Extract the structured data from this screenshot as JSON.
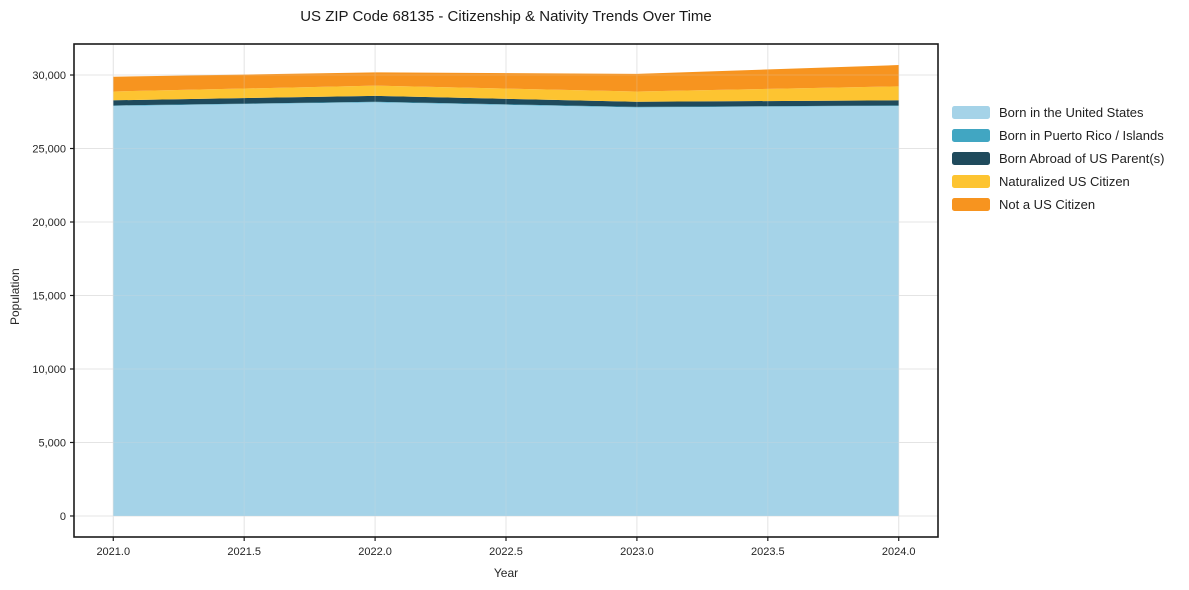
{
  "title": "US ZIP Code 68135 - Citizenship & Nativity Trends Over Time",
  "chart_data": {
    "type": "area",
    "stacked": true,
    "x": [
      2021.0,
      2022.0,
      2023.0,
      2024.0
    ],
    "series": [
      {
        "name": "Born in the United States",
        "color": "#a5d3e8",
        "values": [
          27900,
          28150,
          27800,
          27900
        ]
      },
      {
        "name": "Born in Puerto Rico / Islands",
        "color": "#41a6c2",
        "values": [
          30,
          30,
          30,
          30
        ]
      },
      {
        "name": "Born Abroad of US Parent(s)",
        "color": "#1f4a5c",
        "values": [
          350,
          400,
          350,
          350
        ]
      },
      {
        "name": "Naturalized US Citizen",
        "color": "#fdc431",
        "values": [
          600,
          700,
          700,
          950
        ]
      },
      {
        "name": "Not a US Citizen",
        "color": "#f7941f",
        "values": [
          1000,
          900,
          1200,
          1450
        ]
      }
    ],
    "xlabel": "Year",
    "ylabel": "Population",
    "xlim": [
      2020.85,
      2024.15
    ],
    "ylim": [
      -1430,
      32110
    ],
    "xticks": [
      2021.0,
      2021.5,
      2022.0,
      2022.5,
      2023.0,
      2023.5,
      2024.0
    ],
    "xtick_labels": [
      "2021.0",
      "2021.5",
      "2022.0",
      "2022.5",
      "2023.0",
      "2023.5",
      "2024.0"
    ],
    "yticks": [
      0,
      5000,
      10000,
      15000,
      20000,
      25000,
      30000
    ],
    "ytick_labels": [
      "0",
      "5,000",
      "10,000",
      "15,000",
      "20,000",
      "25,000",
      "30,000"
    ],
    "grid": true,
    "legend_position": "right",
    "background": "#ffffff"
  },
  "colors": {
    "spine": "#1a1a1a",
    "grid": "#e8e8e8",
    "grid_overlay": "#d9d9d9",
    "tick_text": "#262626"
  }
}
